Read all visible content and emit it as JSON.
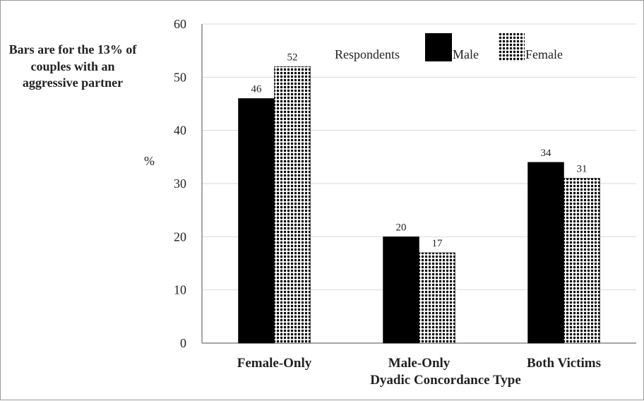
{
  "note": "Bars are for the 13% of couples with an aggressive partner",
  "colors": {
    "male": "#000000",
    "female_pattern": "dots",
    "axis": "#8a8a8a",
    "grid": "#d9d9d9"
  },
  "chart_data": {
    "type": "bar",
    "title": "",
    "xlabel": "Dyadic Concordance Type",
    "ylabel": "%",
    "ylim": [
      0,
      60
    ],
    "yticks": [
      0,
      10,
      20,
      30,
      40,
      50,
      60
    ],
    "grid": "horizontal",
    "legend": {
      "placement": "top-right",
      "title": "Respondents",
      "entries": [
        "Male",
        "Female"
      ]
    },
    "categories": [
      "Female-Only",
      "Male-Only",
      "Both Victims"
    ],
    "series": [
      {
        "name": "Male",
        "values": [
          46,
          20,
          34
        ],
        "fill": "solid-black"
      },
      {
        "name": "Female",
        "values": [
          52,
          17,
          31
        ],
        "fill": "white-dotted"
      }
    ],
    "data_labels": true
  }
}
